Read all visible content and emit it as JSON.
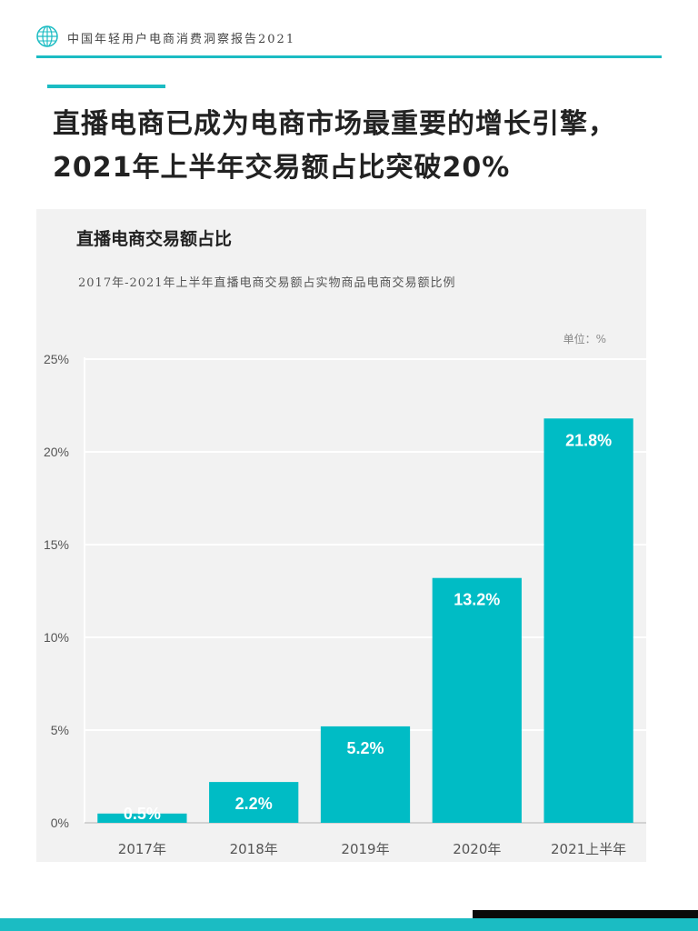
{
  "header": {
    "report_title": "中国年轻用户电商消费洞察报告2021"
  },
  "headline": {
    "line1": "直播电商已成为电商市场最重要的增长引擎，",
    "line2": "2021年上半年交易额占比突破20%"
  },
  "chart": {
    "title": "直播电商交易额占比",
    "subtitle": "2017年-2021年上半年直播电商交易额占实物商品电商交易额比例",
    "unit": "单位：%"
  },
  "colors": {
    "accent": "#1bbcc3",
    "bar": "#00bcc5",
    "background": "#f2f2f2"
  },
  "chart_data": {
    "type": "bar",
    "categories": [
      "2017年",
      "2018年",
      "2019年",
      "2020年",
      "2021上半年"
    ],
    "values": [
      0.5,
      2.2,
      5.2,
      13.2,
      21.8
    ],
    "data_labels": [
      "0.5%",
      "2.2%",
      "5.2%",
      "13.2%",
      "21.8%"
    ],
    "y_ticks": [
      0,
      5,
      10,
      15,
      20,
      25
    ],
    "y_tick_labels": [
      "0%",
      "5%",
      "10%",
      "15%",
      "20%",
      "25%"
    ],
    "ylim": [
      0,
      25
    ],
    "grid": true,
    "legend": false
  }
}
